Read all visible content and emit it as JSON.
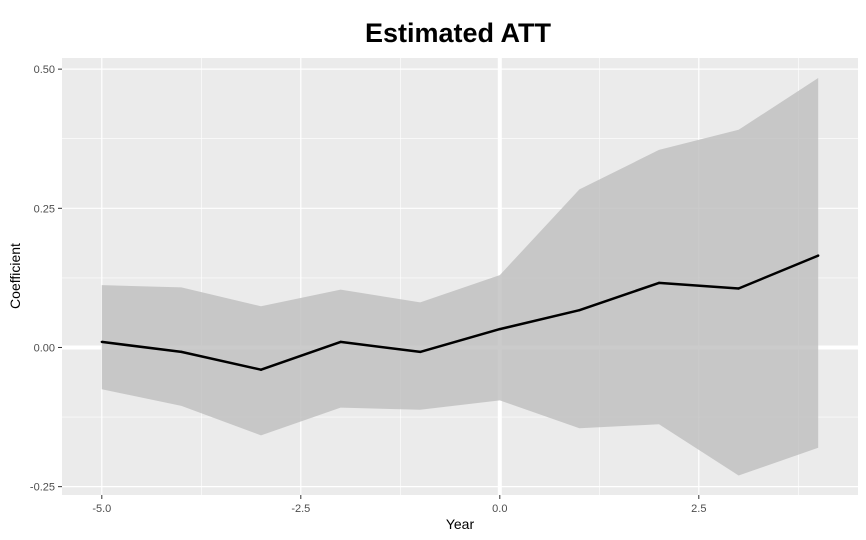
{
  "chart_data": {
    "type": "line",
    "title": "Estimated ATT",
    "xlabel": "Year",
    "ylabel": "Coefficient",
    "xlim": [
      -5.5,
      4.5
    ],
    "ylim": [
      -0.265,
      0.52
    ],
    "x_ticks": [
      -5.0,
      -2.5,
      0.0,
      2.5
    ],
    "x_tick_labels": [
      "-5.0",
      "-2.5",
      "0.0",
      "2.5"
    ],
    "y_ticks": [
      -0.25,
      0.0,
      0.25,
      0.5
    ],
    "y_tick_labels": [
      "-0.25",
      "0.00",
      "0.25",
      "0.50"
    ],
    "reference_lines": {
      "x": 0,
      "y": 0
    },
    "grid": true,
    "x": [
      -5,
      -4,
      -3,
      -2,
      -1,
      0,
      1,
      2,
      3,
      4
    ],
    "series": [
      {
        "values": [
          0.01,
          -0.008,
          -0.04,
          0.01,
          -0.008,
          0.033,
          0.067,
          0.116,
          0.106,
          0.165
        ],
        "lower": [
          -0.075,
          -0.105,
          -0.158,
          -0.108,
          -0.112,
          -0.095,
          -0.145,
          -0.138,
          -0.23,
          -0.18
        ],
        "upper": [
          0.112,
          0.108,
          0.074,
          0.104,
          0.081,
          0.13,
          0.284,
          0.355,
          0.391,
          0.484
        ]
      }
    ],
    "colors": {
      "panel": "#ebebeb",
      "grid_major": "#ffffff",
      "ribbon": "#bebebe",
      "line": "#000000"
    }
  }
}
